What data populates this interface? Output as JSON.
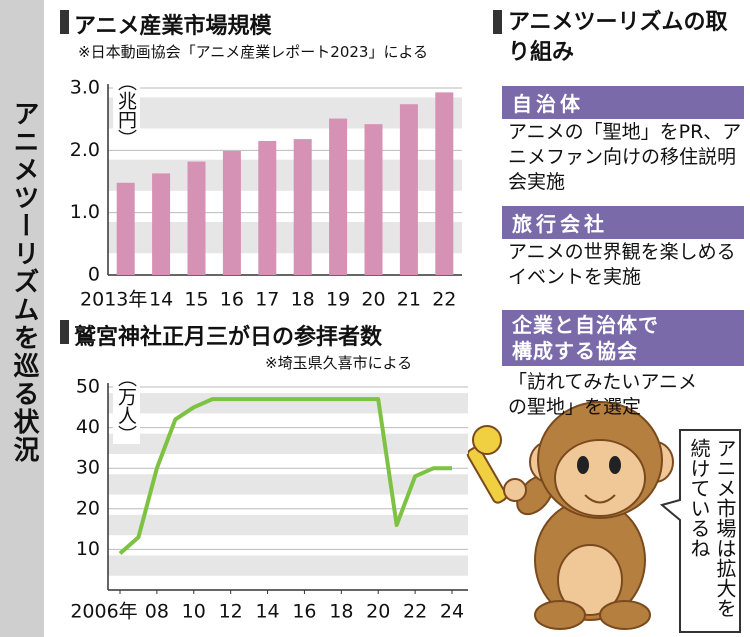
{
  "side_title": "アニメツーリズムを巡る状況",
  "chart_data": [
    {
      "type": "bar",
      "title": "アニメ産業市場規模",
      "note": "※日本動画協会「アニメ産業レポート2023」による",
      "y_label": "（兆円）",
      "categories": [
        "2013年",
        "14",
        "15",
        "16",
        "17",
        "18",
        "19",
        "20",
        "21",
        "22"
      ],
      "values": [
        1.48,
        1.63,
        1.82,
        1.99,
        2.15,
        2.18,
        2.51,
        2.42,
        2.74,
        2.93
      ],
      "color": "#d592b4",
      "ylim": [
        0,
        3.0
      ],
      "yticks": [
        0,
        {
          "value": 1,
          "label": "1.0"
        },
        {
          "value": 2,
          "label": "2.0"
        },
        {
          "value": 3,
          "label": "3.0"
        }
      ],
      "grid": true
    },
    {
      "type": "line",
      "title": "鷲宮神社正月三が日の参拝者数",
      "note": "※埼玉県久喜市による",
      "y_label": "（万人）",
      "x": [
        2006,
        2007,
        2008,
        2009,
        2010,
        2011,
        2012,
        2013,
        2014,
        2015,
        2016,
        2017,
        2018,
        2019,
        2020,
        2021,
        2022,
        2023,
        2024
      ],
      "values": [
        9,
        13,
        30,
        42,
        45,
        47,
        47,
        47,
        47,
        47,
        47,
        47,
        47,
        47,
        47,
        16,
        28,
        30,
        30
      ],
      "color": "#7dc242",
      "xlim": [
        2006,
        2024
      ],
      "ylim": [
        0,
        50
      ],
      "xticks": [
        {
          "value": 2006,
          "label": "2006年"
        },
        {
          "value": 2008,
          "label": "08"
        },
        {
          "value": 2010,
          "label": "10"
        },
        {
          "value": 2012,
          "label": "12"
        },
        {
          "value": 2014,
          "label": "14"
        },
        {
          "value": 2016,
          "label": "16"
        },
        {
          "value": 2018,
          "label": "18"
        },
        {
          "value": 2020,
          "label": "20"
        },
        {
          "value": 2022,
          "label": "22"
        },
        {
          "value": 2024,
          "label": "24"
        }
      ],
      "yticks": [
        10,
        20,
        30,
        40,
        50
      ],
      "grid": true
    }
  ],
  "panel": {
    "title": "アニメツーリズムの取り組み",
    "sections": [
      {
        "header": "自治体",
        "body": "アニメの「聖地」をPR、アニメファン向けの移住説明会実施"
      },
      {
        "header": "旅行会社",
        "body": "アニメの世界観を楽しめるイベントを実施"
      },
      {
        "header": "企業と自治体で構成する協会",
        "body": "「訪れてみたいアニメの聖地」を選定"
      }
    ],
    "speech": "アニメ市場は拡大を続けているね"
  }
}
